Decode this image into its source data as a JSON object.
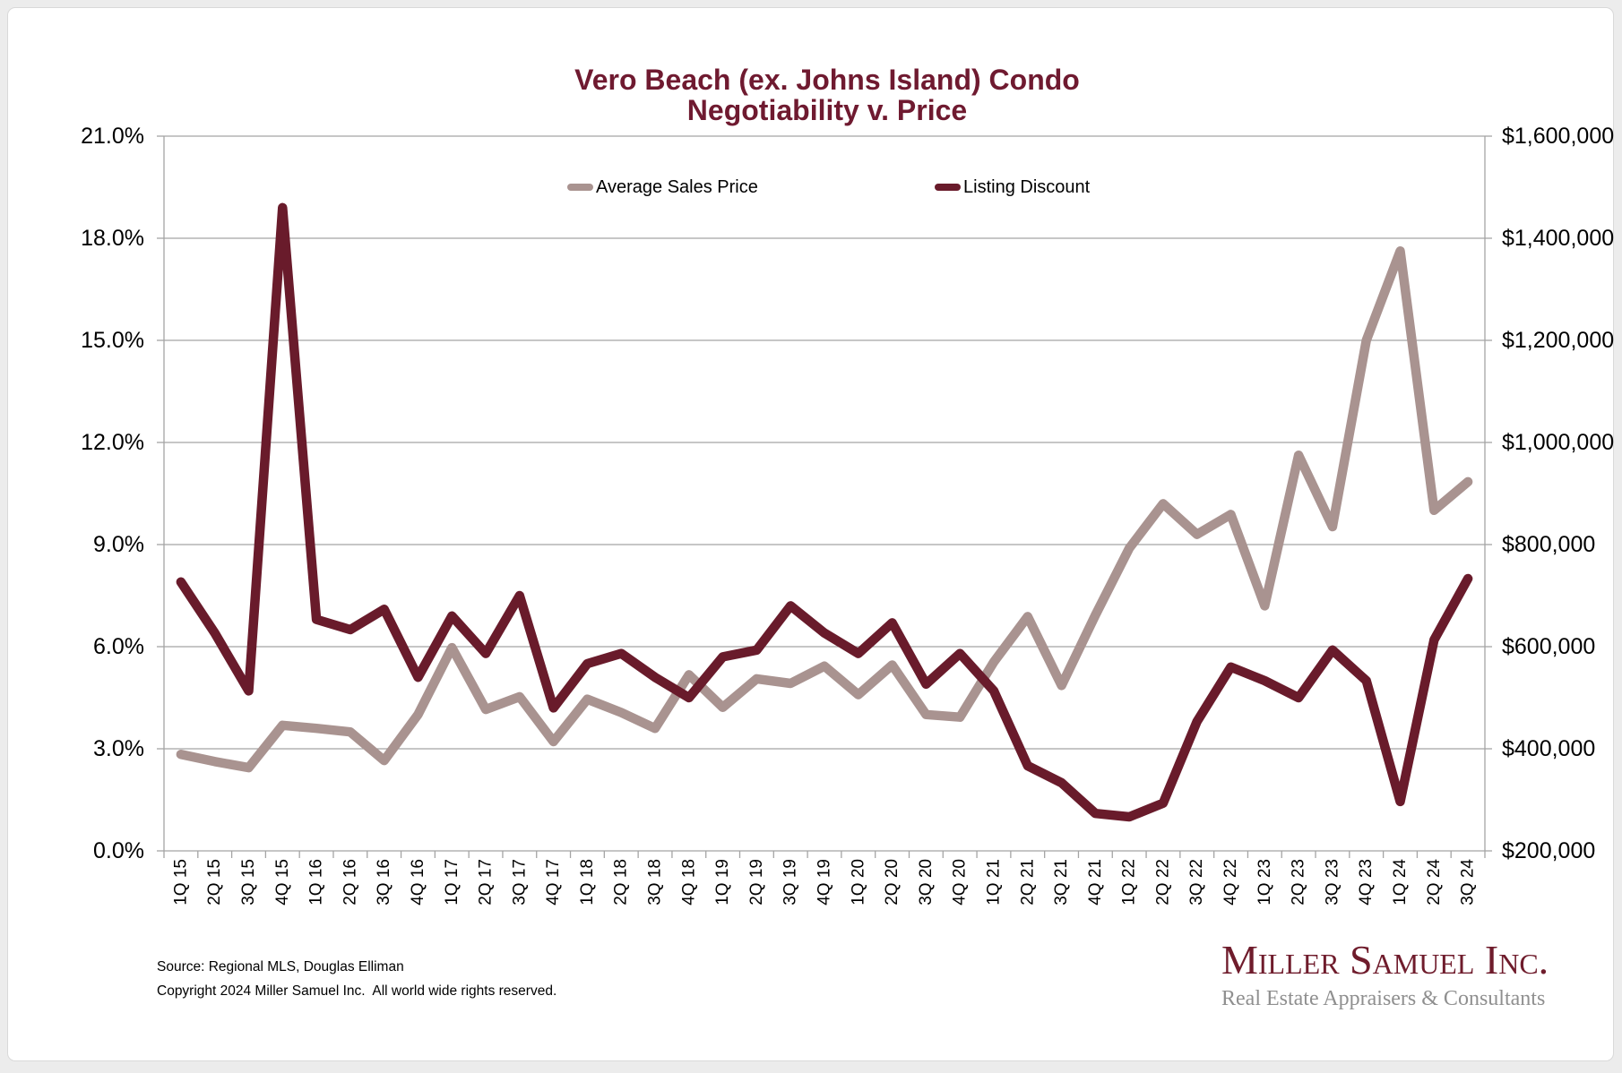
{
  "page": {
    "background": "#ececec",
    "card_background": "#ffffff"
  },
  "title": {
    "line1": "Vero Beach (ex. Johns Island) Condo",
    "line2": "Negotiability v. Price",
    "color": "#6f1a30"
  },
  "legend": {
    "items": [
      {
        "label": "Average Sales Price",
        "color": "#a99390"
      },
      {
        "label": "Listing Discount",
        "color": "#691b2b"
      }
    ]
  },
  "footer": {
    "source_line1": "Source: Regional MLS, Douglas Elliman",
    "source_line2": "Copyright 2024 Miller Samuel Inc.  All world wide rights reserved."
  },
  "logo": {
    "name": "Miller Samuel Inc.",
    "tagline": "Real Estate Appraisers & Consultants",
    "name_color": "#6f1c2c",
    "tagline_color": "#8f8f8f"
  },
  "chart_data": {
    "type": "line",
    "title": "Vero Beach (ex. Johns Island) Condo Negotiability v. Price",
    "categories": [
      "1Q 15",
      "2Q 15",
      "3Q 15",
      "4Q 15",
      "1Q 16",
      "2Q 16",
      "3Q 16",
      "4Q 16",
      "1Q 17",
      "2Q 17",
      "3Q 17",
      "4Q 17",
      "1Q 18",
      "2Q 18",
      "3Q 18",
      "4Q 18",
      "1Q 19",
      "2Q 19",
      "3Q 19",
      "4Q 19",
      "1Q 20",
      "2Q 20",
      "3Q 20",
      "4Q 20",
      "1Q 21",
      "2Q 21",
      "3Q 21",
      "4Q 21",
      "1Q 22",
      "2Q 22",
      "3Q 22",
      "4Q 22",
      "1Q 23",
      "2Q 23",
      "3Q 23",
      "4Q 23",
      "1Q 24",
      "2Q 24",
      "3Q 24"
    ],
    "series": [
      {
        "name": "Average Sales Price",
        "axis": "right",
        "color": "#a99390",
        "values": [
          389000,
          375000,
          363000,
          446000,
          440000,
          433000,
          377000,
          467000,
          598000,
          477000,
          502000,
          414000,
          497000,
          471000,
          440000,
          545000,
          481000,
          537000,
          528000,
          562000,
          506000,
          564000,
          467000,
          462000,
          570000,
          659000,
          524000,
          662000,
          793000,
          880000,
          820000,
          859000,
          680000,
          975000,
          835000,
          1200000,
          1375000,
          867000,
          923000
        ]
      },
      {
        "name": "Listing Discount",
        "axis": "left",
        "color": "#691b2b",
        "values": [
          7.9,
          6.4,
          4.7,
          18.9,
          6.8,
          6.5,
          7.1,
          5.1,
          6.9,
          5.8,
          7.5,
          4.2,
          5.5,
          5.8,
          5.1,
          4.5,
          5.7,
          5.9,
          7.2,
          6.4,
          5.8,
          6.7,
          4.9,
          5.8,
          4.7,
          2.5,
          2.0,
          1.1,
          1.0,
          1.4,
          3.8,
          5.4,
          5.0,
          4.5,
          5.9,
          5.0,
          1.45,
          6.2,
          8.0
        ]
      }
    ],
    "y_left": {
      "min": 0,
      "max": 21,
      "step": 3,
      "labels_top_to_bottom": [
        "21.0%",
        "18.0%",
        "15.0%",
        "12.0%",
        "9.0%",
        "6.0%",
        "3.0%",
        "0.0%"
      ]
    },
    "y_right": {
      "min": 200000,
      "max": 1600000,
      "step": 200000,
      "labels_top_to_bottom": [
        "$1,600,000",
        "$1,400,000",
        "$1,200,000",
        "$1,000,000",
        "$800,000",
        "$600,000",
        "$400,000",
        "$200,000"
      ]
    },
    "grid": true,
    "legend_position": "top-inside",
    "gridline_color": "#a4a4a4",
    "axis_text_color": "#000000"
  }
}
